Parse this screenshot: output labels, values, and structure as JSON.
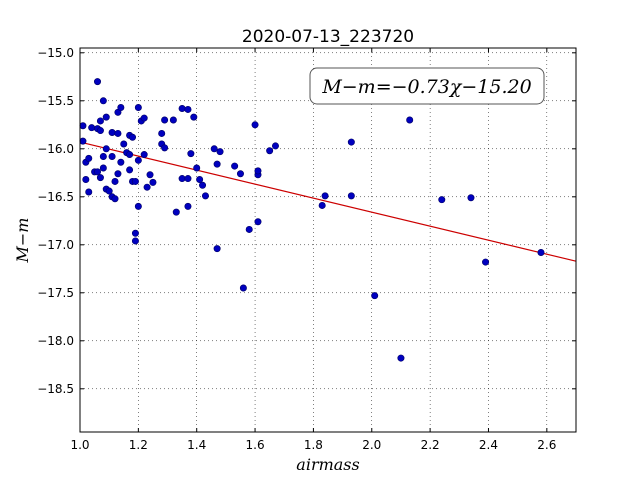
{
  "chart_data": {
    "type": "scatter",
    "title": "2020-07-13_223720",
    "xlabel": "airmass",
    "ylabel": "M−m",
    "xlim": [
      1.0,
      2.7
    ],
    "ylim": [
      -18.95,
      -14.95
    ],
    "y_inverted": true,
    "grid": true,
    "xticks": [
      1.0,
      1.2,
      1.4,
      1.6,
      1.8,
      2.0,
      2.2,
      2.4,
      2.6
    ],
    "xtick_labels": [
      "1.0",
      "1.2",
      "1.4",
      "1.6",
      "1.8",
      "2.0",
      "2.2",
      "2.4",
      "2.6"
    ],
    "yticks": [
      -15.0,
      -15.5,
      -16.0,
      -16.5,
      -17.0,
      -17.5,
      -18.0,
      -18.5
    ],
    "ytick_labels": [
      "−15.0",
      "−15.5",
      "−16.0",
      "−16.5",
      "−17.0",
      "−17.5",
      "−18.0",
      "−18.5"
    ],
    "annotation": "M−m=−0.73χ−15.20",
    "fit": {
      "slope": -0.73,
      "intercept": -15.2
    },
    "colors": {
      "points": "#0000bf",
      "points_edge": "#000066",
      "fit_line": "#cc0000"
    },
    "points": [
      [
        1.01,
        -15.76
      ],
      [
        1.01,
        -15.92
      ],
      [
        1.02,
        -16.14
      ],
      [
        1.02,
        -16.32
      ],
      [
        1.03,
        -16.1
      ],
      [
        1.03,
        -16.45
      ],
      [
        1.04,
        -15.78
      ],
      [
        1.05,
        -16.24
      ],
      [
        1.06,
        -15.79
      ],
      [
        1.06,
        -16.24
      ],
      [
        1.06,
        -15.3
      ],
      [
        1.07,
        -15.71
      ],
      [
        1.07,
        -15.81
      ],
      [
        1.07,
        -16.3
      ],
      [
        1.08,
        -15.5
      ],
      [
        1.08,
        -16.08
      ],
      [
        1.08,
        -16.2
      ],
      [
        1.09,
        -16.42
      ],
      [
        1.09,
        -16.0
      ],
      [
        1.09,
        -15.67
      ],
      [
        1.1,
        -16.44
      ],
      [
        1.11,
        -16.5
      ],
      [
        1.11,
        -15.83
      ],
      [
        1.11,
        -16.08
      ],
      [
        1.12,
        -16.52
      ],
      [
        1.12,
        -16.34
      ],
      [
        1.13,
        -15.84
      ],
      [
        1.13,
        -15.62
      ],
      [
        1.13,
        -16.26
      ],
      [
        1.14,
        -15.57
      ],
      [
        1.14,
        -16.14
      ],
      [
        1.15,
        -15.95
      ],
      [
        1.16,
        -16.04
      ],
      [
        1.17,
        -15.86
      ],
      [
        1.17,
        -16.22
      ],
      [
        1.17,
        -16.06
      ],
      [
        1.18,
        -15.88
      ],
      [
        1.18,
        -16.34
      ],
      [
        1.19,
        -16.34
      ],
      [
        1.19,
        -16.88
      ],
      [
        1.19,
        -16.96
      ],
      [
        1.2,
        -16.6
      ],
      [
        1.2,
        -16.12
      ],
      [
        1.2,
        -15.57
      ],
      [
        1.21,
        -15.71
      ],
      [
        1.22,
        -15.68
      ],
      [
        1.22,
        -16.06
      ],
      [
        1.23,
        -16.4
      ],
      [
        1.24,
        -16.27
      ],
      [
        1.25,
        -16.35
      ],
      [
        1.28,
        -15.95
      ],
      [
        1.28,
        -15.84
      ],
      [
        1.29,
        -15.99
      ],
      [
        1.29,
        -15.7
      ],
      [
        1.32,
        -15.7
      ],
      [
        1.33,
        -16.66
      ],
      [
        1.35,
        -15.58
      ],
      [
        1.35,
        -16.31
      ],
      [
        1.37,
        -15.59
      ],
      [
        1.37,
        -16.31
      ],
      [
        1.37,
        -16.6
      ],
      [
        1.38,
        -16.05
      ],
      [
        1.39,
        -15.67
      ],
      [
        1.4,
        -16.2
      ],
      [
        1.41,
        -16.32
      ],
      [
        1.42,
        -16.38
      ],
      [
        1.43,
        -16.49
      ],
      [
        1.46,
        -16.0
      ],
      [
        1.47,
        -16.16
      ],
      [
        1.47,
        -17.04
      ],
      [
        1.48,
        -16.03
      ],
      [
        1.53,
        -16.18
      ],
      [
        1.55,
        -16.26
      ],
      [
        1.56,
        -17.45
      ],
      [
        1.58,
        -16.84
      ],
      [
        1.6,
        -15.75
      ],
      [
        1.61,
        -16.27
      ],
      [
        1.61,
        -16.76
      ],
      [
        1.61,
        -16.23
      ],
      [
        1.65,
        -16.02
      ],
      [
        1.67,
        -15.97
      ],
      [
        1.83,
        -16.59
      ],
      [
        1.84,
        -16.49
      ],
      [
        1.93,
        -16.49
      ],
      [
        1.93,
        -15.93
      ],
      [
        2.01,
        -17.53
      ],
      [
        2.1,
        -18.18
      ],
      [
        2.13,
        -15.7
      ],
      [
        2.24,
        -16.53
      ],
      [
        2.34,
        -16.51
      ],
      [
        2.39,
        -17.18
      ],
      [
        2.58,
        -17.08
      ]
    ]
  }
}
